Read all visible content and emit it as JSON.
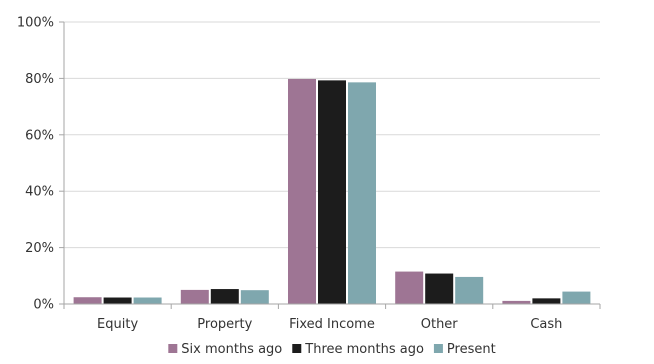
{
  "chart_data": {
    "type": "bar",
    "categories": [
      "Equity",
      "Property",
      "Fixed Income",
      "Other",
      "Cash"
    ],
    "series": [
      {
        "name": "Six months ago",
        "values": [
          2.4,
          5.0,
          79.8,
          11.5,
          1.1
        ],
        "color": "#9e7594"
      },
      {
        "name": "Three months ago",
        "values": [
          2.3,
          5.3,
          79.3,
          10.8,
          2.0
        ],
        "color": "#1c1c1c"
      },
      {
        "name": "Present",
        "values": [
          2.3,
          4.9,
          78.6,
          9.6,
          4.4
        ],
        "color": "#7fa7ae"
      }
    ],
    "title": "",
    "xlabel": "",
    "ylabel": "",
    "ylim": [
      0,
      100
    ],
    "yticks": [
      "0%",
      "20%",
      "40%",
      "60%",
      "80%",
      "100%"
    ],
    "ytick_values": [
      0,
      20,
      40,
      60,
      80,
      100
    ],
    "legend_position": "bottom",
    "grid": true,
    "colors": {
      "grid": "#d9d9d9",
      "axis": "#a6a6a6",
      "text": "#333333"
    }
  }
}
